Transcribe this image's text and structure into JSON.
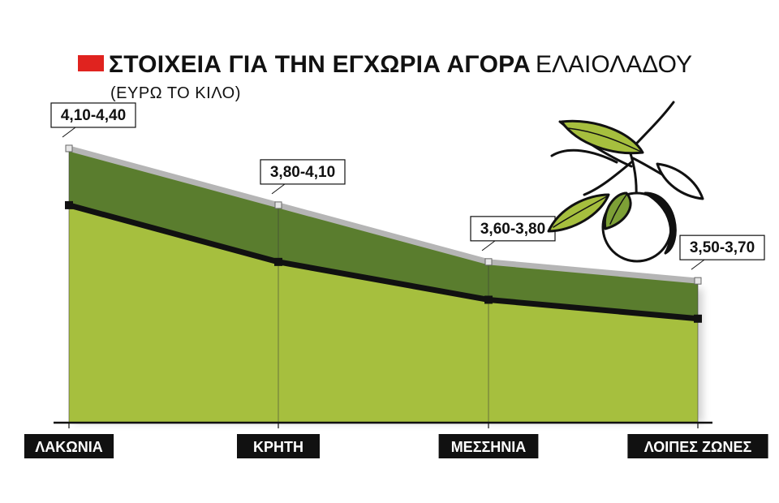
{
  "title": {
    "bold": "ΣΤΟΙΧΕΙΑ ΓΙΑ ΤΗΝ ΕΓΧΩΡΙΑ ΑΓΟΡΑ",
    "light": "ΕΛΑΙΟΛΑΔΟΥ",
    "subtitle": "(ΕΥΡΩ ΤΟ ΚΙΛΟ)",
    "accent_color": "#e0231f"
  },
  "chart_data": {
    "type": "area",
    "title": "ΣΤΟΙΧΕΙΑ ΓΙΑ ΤΗΝ ΕΓΧΩΡΙΑ ΑΓΟΡΑ ΕΛΑΙΟΛΑΔΟΥ",
    "subtitle": "(ΕΥΡΩ ΤΟ ΚΙΛΟ)",
    "categories": [
      "ΛΑΚΩΝΙΑ",
      "ΚΡΗΤΗ",
      "ΜΕΣΣΗΝΙΑ",
      "ΛΟΙΠΕΣ ΖΩΝΕΣ"
    ],
    "series": [
      {
        "values": [
          4.1,
          3.8,
          3.6,
          3.5
        ],
        "color": "#a6bf3e"
      },
      {
        "values": [
          4.4,
          4.1,
          3.8,
          3.7
        ],
        "color": "#5a7d2e"
      }
    ],
    "range_labels": [
      "4,10-4,40",
      "3,80-4,10",
      "3,60-3,80",
      "3,50-3,70"
    ],
    "ylim": [
      2.95,
      4.52
    ],
    "grid": false,
    "legend": "none",
    "colors": {
      "low_fill": "#a6bf3e",
      "band_fill": "#5a7d2e",
      "top_edge": "#b5b5b5",
      "low_line": "#111111",
      "label_bg": "#111111",
      "label_text": "#ffffff"
    }
  },
  "illustration": {
    "icon": "olive-branch-icon"
  }
}
